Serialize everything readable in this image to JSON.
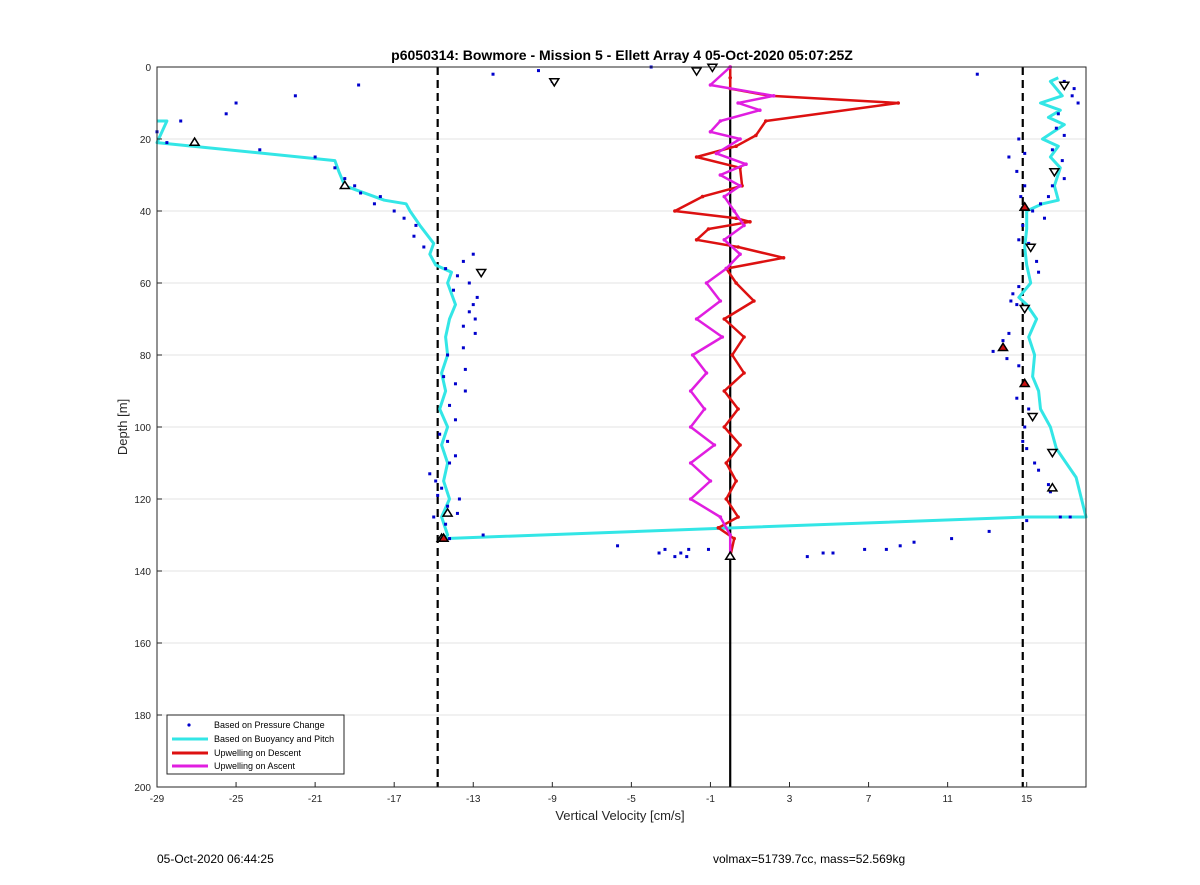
{
  "footer": {
    "timestamp": "05-Oct-2020 06:44:25",
    "vol_mass": "volmax=51739.7cc, mass=52.569kg"
  },
  "chart_data": {
    "type": "scatter",
    "title": "p6050314: Bowmore - Mission 5 - Ellett Array 4 05-Oct-2020 05:07:25Z",
    "xlabel": "Vertical Velocity [cm/s]",
    "ylabel": "Depth [m]",
    "xlim": [
      -29,
      18
    ],
    "ylim": [
      0,
      200
    ],
    "y_reversed": true,
    "grid": "horizontal",
    "xticks": [
      -29,
      -25,
      -21,
      -17,
      -13,
      -9,
      -5,
      -1,
      3,
      7,
      11,
      15
    ],
    "yticks": [
      0,
      20,
      40,
      60,
      80,
      100,
      120,
      140,
      160,
      180,
      200
    ],
    "legend_position": "bottom-left",
    "legend": [
      "Based on Pressure Change",
      "Based on Buoyancy and Pitch",
      "Upwelling on Descent",
      "Upwelling on Ascent"
    ],
    "colors": {
      "pressure": "#0000cc",
      "buoyancy": "#33e6e6",
      "descent": "#dd1111",
      "ascent": "#e01ee0",
      "reference": "#000000"
    },
    "reference_lines": {
      "solid_x": 0,
      "dashed_x": [
        -14.8,
        14.8
      ]
    },
    "series": [
      {
        "name": "Based on Buoyancy and Pitch",
        "style": "line",
        "points": [
          [
            -29,
            15
          ],
          [
            -28.5,
            15
          ],
          [
            -29,
            21
          ],
          [
            -20,
            26
          ],
          [
            -19.8,
            29
          ],
          [
            -19.5,
            33
          ],
          [
            -17.5,
            37
          ],
          [
            -16.4,
            38
          ],
          [
            -16.2,
            40
          ],
          [
            -15.7,
            44
          ],
          [
            -15,
            49
          ],
          [
            -15.2,
            52
          ],
          [
            -14.9,
            55
          ],
          [
            -14.1,
            57
          ],
          [
            -14.3,
            60
          ],
          [
            -14.1,
            63
          ],
          [
            -13.9,
            66
          ],
          [
            -14.2,
            70
          ],
          [
            -14.4,
            75
          ],
          [
            -14.3,
            80
          ],
          [
            -14.6,
            85
          ],
          [
            -14.4,
            90
          ],
          [
            -14.7,
            95
          ],
          [
            -14.3,
            100
          ],
          [
            -14.6,
            105
          ],
          [
            -14.3,
            110
          ],
          [
            -14.5,
            115
          ],
          [
            -14.2,
            120
          ],
          [
            -14.6,
            125
          ],
          [
            -14.3,
            130
          ],
          [
            -14.5,
            131
          ],
          [
            15,
            125
          ],
          [
            18,
            125
          ],
          [
            17.5,
            114
          ],
          [
            17,
            110
          ],
          [
            16.5,
            106
          ],
          [
            16.2,
            100
          ],
          [
            15.7,
            95
          ],
          [
            15.6,
            90
          ],
          [
            15.3,
            86
          ],
          [
            15.4,
            80
          ],
          [
            15.1,
            75
          ],
          [
            15.5,
            70
          ],
          [
            15,
            66
          ],
          [
            14.6,
            64
          ],
          [
            15.2,
            60
          ],
          [
            15,
            55
          ],
          [
            14.9,
            50
          ],
          [
            15,
            45
          ],
          [
            15,
            40
          ],
          [
            15.8,
            38
          ],
          [
            16.6,
            37
          ],
          [
            16.4,
            33
          ],
          [
            16.7,
            28
          ],
          [
            16.2,
            25
          ],
          [
            16.6,
            22
          ],
          [
            15.8,
            20
          ],
          [
            16.9,
            16
          ],
          [
            16.1,
            14
          ],
          [
            16.7,
            12
          ],
          [
            15.7,
            10
          ],
          [
            16.8,
            8
          ],
          [
            16.2,
            4
          ],
          [
            16.6,
            3
          ]
        ]
      },
      {
        "name": "Upwelling on Descent",
        "style": "line",
        "points": [
          [
            0,
            0
          ],
          [
            0,
            3
          ],
          [
            0,
            6
          ],
          [
            2,
            8
          ],
          [
            8.5,
            10
          ],
          [
            1.8,
            15
          ],
          [
            1.3,
            19
          ],
          [
            0.3,
            22
          ],
          [
            -1.7,
            25
          ],
          [
            0.5,
            28
          ],
          [
            0.6,
            33
          ],
          [
            -1.4,
            36
          ],
          [
            -2.8,
            40
          ],
          [
            0.3,
            42
          ],
          [
            1,
            43
          ],
          [
            -1.1,
            45
          ],
          [
            -1.7,
            48
          ],
          [
            0.4,
            50
          ],
          [
            2.7,
            53
          ],
          [
            -0.2,
            56
          ],
          [
            0.3,
            60
          ],
          [
            1.2,
            65
          ],
          [
            -0.3,
            70
          ],
          [
            0.7,
            75
          ],
          [
            0.1,
            80
          ],
          [
            0.7,
            85
          ],
          [
            -0.3,
            90
          ],
          [
            0.4,
            95
          ],
          [
            -0.3,
            100
          ],
          [
            0.5,
            105
          ],
          [
            -0.2,
            110
          ],
          [
            0.3,
            115
          ],
          [
            -0.2,
            120
          ],
          [
            0.4,
            125
          ],
          [
            -0.6,
            128
          ],
          [
            0.2,
            131
          ],
          [
            0,
            136
          ]
        ]
      },
      {
        "name": "Upwelling on Ascent",
        "style": "line",
        "points": [
          [
            0,
            0
          ],
          [
            -1,
            5
          ],
          [
            2.2,
            8
          ],
          [
            0.4,
            10
          ],
          [
            1.5,
            12
          ],
          [
            -0.5,
            15
          ],
          [
            -1,
            18
          ],
          [
            0.5,
            20
          ],
          [
            -0.7,
            24
          ],
          [
            0.8,
            27
          ],
          [
            -0.5,
            30
          ],
          [
            0.5,
            33
          ],
          [
            -0.3,
            36
          ],
          [
            0.2,
            40
          ],
          [
            0.7,
            44
          ],
          [
            -0.3,
            48
          ],
          [
            0.5,
            52
          ],
          [
            -0.2,
            56
          ],
          [
            -1.2,
            60
          ],
          [
            -0.5,
            65
          ],
          [
            -1.7,
            70
          ],
          [
            -0.4,
            75
          ],
          [
            -1.9,
            80
          ],
          [
            -1.2,
            85
          ],
          [
            -2,
            90
          ],
          [
            -1.3,
            95
          ],
          [
            -2,
            100
          ],
          [
            -0.8,
            105
          ],
          [
            -2,
            110
          ],
          [
            -1,
            115
          ],
          [
            -2,
            120
          ],
          [
            -0.5,
            125
          ],
          [
            0,
            130
          ],
          [
            0,
            136
          ]
        ]
      },
      {
        "name": "Based on Pressure Change",
        "style": "dots",
        "points": [
          [
            -29,
            18
          ],
          [
            -27.8,
            15
          ],
          [
            -28.5,
            21
          ],
          [
            -25,
            10
          ],
          [
            -25.5,
            13
          ],
          [
            -23.8,
            23
          ],
          [
            -22,
            8
          ],
          [
            -21,
            25
          ],
          [
            -18.8,
            5
          ],
          [
            -20,
            28
          ],
          [
            -19.5,
            31
          ],
          [
            -19,
            33
          ],
          [
            -18.7,
            35
          ],
          [
            -17.7,
            36
          ],
          [
            -18,
            38
          ],
          [
            -17,
            40
          ],
          [
            -16.5,
            42
          ],
          [
            -15.9,
            44
          ],
          [
            -16,
            47
          ],
          [
            -15.5,
            50
          ],
          [
            -13,
            52
          ],
          [
            -13.5,
            54
          ],
          [
            -14.4,
            56
          ],
          [
            -13.8,
            58
          ],
          [
            -13.2,
            60
          ],
          [
            -14,
            62
          ],
          [
            -12.8,
            64
          ],
          [
            -13,
            66
          ],
          [
            -13.2,
            68
          ],
          [
            -12.9,
            70
          ],
          [
            -13.5,
            72
          ],
          [
            -12.9,
            74
          ],
          [
            -13.5,
            78
          ],
          [
            -14.3,
            80
          ],
          [
            -13.4,
            84
          ],
          [
            -14.5,
            86
          ],
          [
            -13.9,
            88
          ],
          [
            -13.4,
            90
          ],
          [
            -14.2,
            94
          ],
          [
            -13.9,
            98
          ],
          [
            -14.7,
            102
          ],
          [
            -14.3,
            104
          ],
          [
            -13.9,
            108
          ],
          [
            -14.2,
            110
          ],
          [
            -15.2,
            113
          ],
          [
            -14.9,
            115
          ],
          [
            -14.6,
            117
          ],
          [
            -14.8,
            119
          ],
          [
            -13.7,
            120
          ],
          [
            -14.3,
            122
          ],
          [
            -13.8,
            124
          ],
          [
            -15,
            125
          ],
          [
            -14.4,
            127
          ],
          [
            -12.5,
            130
          ],
          [
            -14.2,
            131
          ],
          [
            -5.7,
            133
          ],
          [
            -3.3,
            134
          ],
          [
            -3.6,
            135
          ],
          [
            -2.8,
            136
          ],
          [
            -2.1,
            134
          ],
          [
            -2.2,
            136
          ],
          [
            -2.5,
            135
          ],
          [
            -1.1,
            134
          ],
          [
            3.9,
            136
          ],
          [
            4.7,
            135
          ],
          [
            5.2,
            135
          ],
          [
            6.8,
            134
          ],
          [
            7.9,
            134
          ],
          [
            8.6,
            133
          ],
          [
            9.3,
            132
          ],
          [
            11.2,
            131
          ],
          [
            13.1,
            129
          ],
          [
            15,
            126
          ],
          [
            17.2,
            125
          ],
          [
            -12,
            2
          ],
          [
            -9.7,
            1
          ],
          [
            -9,
            4
          ],
          [
            -4,
            0
          ],
          [
            12.5,
            2
          ],
          [
            14.6,
            20
          ],
          [
            14.9,
            24
          ],
          [
            14.1,
            25
          ],
          [
            14.5,
            29
          ],
          [
            14.9,
            33
          ],
          [
            14.7,
            36
          ],
          [
            14.9,
            39
          ],
          [
            14.8,
            44
          ],
          [
            14.6,
            48
          ],
          [
            15.1,
            49
          ],
          [
            15.5,
            54
          ],
          [
            15.6,
            57
          ],
          [
            14.6,
            61
          ],
          [
            14.3,
            63
          ],
          [
            14.2,
            65
          ],
          [
            14.5,
            66
          ],
          [
            14.9,
            67
          ],
          [
            14.1,
            74
          ],
          [
            13.8,
            76
          ],
          [
            13.3,
            79
          ],
          [
            14,
            81
          ],
          [
            14.6,
            83
          ],
          [
            14.9,
            88
          ],
          [
            14.5,
            92
          ],
          [
            15.1,
            95
          ],
          [
            14.9,
            100
          ],
          [
            14.8,
            104
          ],
          [
            15,
            106
          ],
          [
            15.4,
            110
          ],
          [
            15.6,
            112
          ],
          [
            16.1,
            116
          ],
          [
            16.2,
            118
          ],
          [
            16.7,
            125
          ],
          [
            16.9,
            4
          ],
          [
            17.4,
            6
          ],
          [
            17.3,
            8
          ],
          [
            17.6,
            10
          ],
          [
            16.6,
            13
          ],
          [
            16.5,
            17
          ],
          [
            16.9,
            19
          ],
          [
            16.3,
            23
          ],
          [
            16.8,
            26
          ],
          [
            16.4,
            29
          ],
          [
            16.9,
            31
          ],
          [
            16.3,
            33
          ],
          [
            16.1,
            36
          ],
          [
            15.7,
            38
          ],
          [
            15.3,
            40
          ],
          [
            15.9,
            42
          ]
        ]
      },
      {
        "name": "Descent markers",
        "style": "triangle-down",
        "points": [
          [
            -0.9,
            0
          ],
          [
            -8.9,
            4
          ],
          [
            -12.6,
            57
          ],
          [
            16.9,
            5
          ],
          [
            16.4,
            29
          ],
          [
            15.2,
            50
          ],
          [
            14.9,
            67
          ],
          [
            15.3,
            97
          ],
          [
            16.3,
            107
          ],
          [
            -1.7,
            1
          ]
        ]
      },
      {
        "name": "Ascent markers",
        "style": "triangle-up",
        "points": [
          [
            -27.1,
            21
          ],
          [
            -19.5,
            33
          ],
          [
            -14.3,
            124
          ],
          [
            -14.6,
            131
          ],
          [
            14.9,
            39
          ],
          [
            16.3,
            117
          ],
          [
            0,
            136
          ]
        ]
      },
      {
        "name": "Filled markers",
        "style": "triangle-up-filled",
        "points": [
          [
            13.8,
            78
          ],
          [
            14.9,
            88
          ],
          [
            -14.5,
            131
          ],
          [
            14.9,
            39
          ]
        ]
      }
    ]
  }
}
